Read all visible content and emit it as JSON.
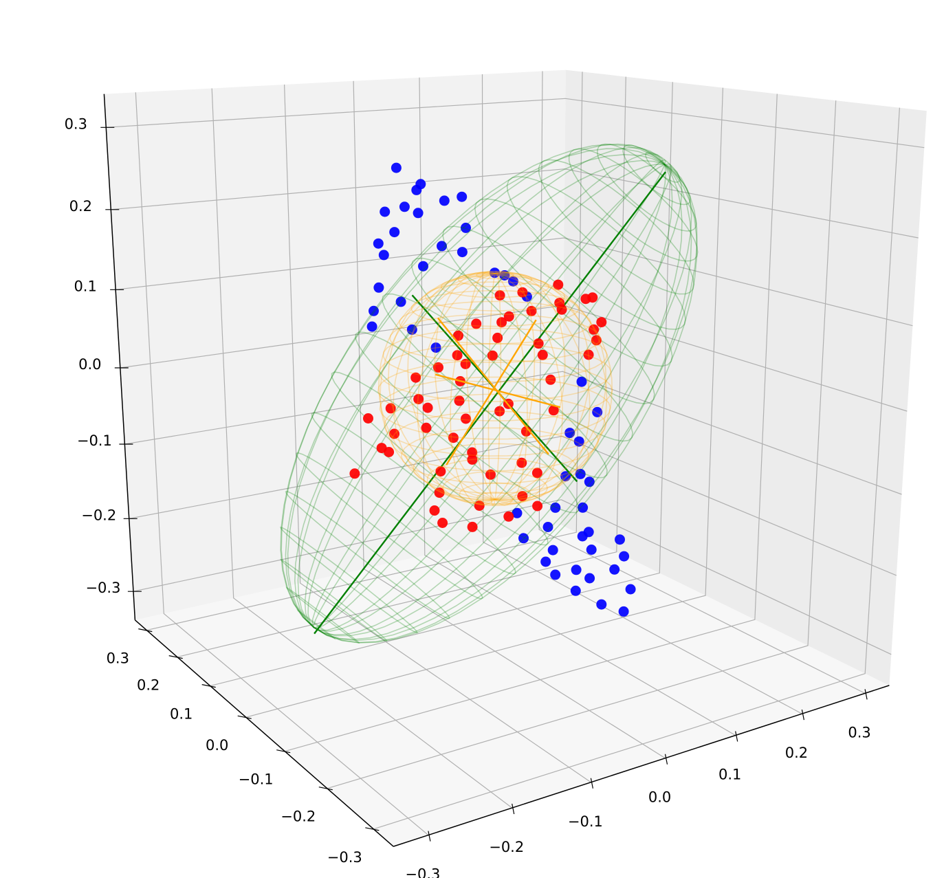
{
  "chart_data": {
    "type": "scatter3d",
    "xlim": [
      -0.34,
      0.34
    ],
    "ylim": [
      -0.34,
      0.34
    ],
    "zlim": [
      -0.34,
      0.34
    ],
    "xticks": [
      {
        "value": -0.3,
        "label": "−0.3"
      },
      {
        "value": -0.2,
        "label": "−0.2"
      },
      {
        "value": -0.1,
        "label": "−0.1"
      },
      {
        "value": 0,
        "label": "0.0"
      },
      0.1,
      0.2,
      0.3
    ],
    "yticks": [
      {
        "value": -0.3,
        "label": "−0.3"
      },
      {
        "value": -0.2,
        "label": "−0.2"
      },
      {
        "value": -0.1,
        "label": "−0.1"
      },
      {
        "value": 0,
        "label": "0.0"
      },
      0.1,
      0.2,
      0.3
    ],
    "zticks": [
      {
        "value": -0.3,
        "label": "−0.3"
      },
      {
        "value": -0.2,
        "label": "−0.2"
      },
      {
        "value": -0.1,
        "label": "−0.1"
      },
      {
        "value": 0,
        "label": "0.0"
      },
      0.1,
      0.2,
      0.3
    ],
    "grid": true,
    "series": [
      {
        "color": "#0000ff",
        "x": [
          -0.12,
          -0.106,
          -0.088,
          -0.069,
          -0.133,
          -0.098,
          -0.059,
          -0.033,
          -0.147,
          -0.118,
          -0.079,
          -0.039,
          -0.167,
          -0.138,
          -0.098,
          -0.02,
          0.02,
          0.039,
          -0.162,
          -0.128,
          -0.147,
          -0.177,
          -0.108,
          -0.088,
          0.059,
          0.128,
          0.138,
          0.118,
          0.147,
          0.098,
          0.128,
          0.157,
          0.069,
          0.039,
          0.079,
          0.118,
          0.157,
          0.049,
          0.069,
          0.108,
          0.147,
          0.177,
          0.098,
          0.138,
          0.177,
          0.123,
          0.167,
          0.196,
          0.172,
          0.201,
          0.192,
          0.147
        ],
        "y": [
          0.02,
          -0.01,
          0.03,
          0,
          -0.02,
          0.01,
          -0.03,
          0.02,
          0,
          0.03,
          -0.01,
          0.01,
          -0.02,
          0.02,
          0,
          -0.03,
          0.01,
          0.02,
          -0.01,
          0,
          0.03,
          -0.02,
          0.01,
          -0.01,
          0.02,
          0,
          -0.02,
          0.01,
          0.03,
          -0.01,
          0,
          0.02,
          -0.03,
          0.01,
          0,
          -0.02,
          0.02,
          0.01,
          -0.01,
          0.03,
          0,
          -0.02,
          0.01,
          0.02,
          -0.01,
          0,
          0.03,
          -0.02,
          0.01,
          0,
          -0.01,
          0.02
        ],
        "z": [
          0.271,
          0.255,
          0.242,
          0.232,
          0.233,
          0.219,
          0.204,
          0.231,
          0.226,
          0.196,
          0.182,
          0.168,
          0.195,
          0.173,
          0.159,
          0.148,
          0.134,
          0.123,
          0.143,
          0.121,
          0.107,
          0.102,
          0.084,
          0.064,
          0.102,
          -0.01,
          -0.046,
          -0.077,
          -0.098,
          -0.125,
          -0.13,
          -0.151,
          -0.155,
          -0.168,
          -0.191,
          -0.205,
          -0.219,
          -0.203,
          -0.232,
          -0.237,
          -0.235,
          -0.221,
          -0.262,
          -0.267,
          -0.265,
          -0.286,
          -0.288,
          -0.293,
          -0.319,
          -0.332,
          -0.25,
          -0.184
        ]
      },
      {
        "color": "#ff0000",
        "x": [
          0.098,
          0.128,
          0.147,
          0.157,
          0.138,
          0.118,
          0.079,
          0.059,
          0.039,
          0.02,
          0,
          -0.02,
          -0.039,
          -0.059,
          -0.079,
          -0.098,
          -0.118,
          -0.138,
          -0.157,
          -0.162,
          -0.147,
          -0.128,
          -0.108,
          -0.088,
          -0.069,
          -0.049,
          -0.029,
          -0.01,
          0.01,
          0.029,
          0.049,
          0.069,
          0.088,
          0.079,
          0.059,
          0.039,
          0.02,
          0,
          -0.02,
          -0.039,
          -0.059,
          -0.079,
          -0.098,
          -0.069,
          -0.039,
          -0.01,
          0.02,
          0.049,
          0.069,
          0.039,
          0,
          -0.029,
          -0.059,
          -0.203,
          0.157,
          0.138
        ],
        "y": [
          0.01,
          -0.02,
          0.02,
          0,
          -0.01,
          0.03,
          -0.02,
          0.01,
          0,
          0.02,
          -0.03,
          0.01,
          0.02,
          -0.01,
          0,
          0.02,
          -0.02,
          0.01,
          0.03,
          -0.01,
          0,
          0.02,
          -0.02,
          0.01,
          -0.03,
          0,
          0.02,
          -0.01,
          0.01,
          0.03,
          -0.02,
          0,
          0.01,
          -0.01,
          0.02,
          0,
          -0.03,
          0.01,
          0.02,
          -0.01,
          0.03,
          0,
          -0.02,
          0.01,
          -0.01,
          0.02,
          0,
          -0.02,
          0.01,
          0.03,
          -0.01,
          0.02,
          0,
          -0.02,
          0.01,
          0
        ],
        "z": [
          0.114,
          0.1,
          0.089,
          0.062,
          0.057,
          0.077,
          0.099,
          0.086,
          0.113,
          0.108,
          0.094,
          0.08,
          0.066,
          0.051,
          0.037,
          0.023,
          0.009,
          -0.006,
          -0.02,
          -0.045,
          -0.055,
          -0.041,
          -0.027,
          -0.013,
          0.002,
          0.016,
          0.03,
          0.044,
          0.059,
          0.072,
          0.053,
          0.032,
          -0.004,
          -0.037,
          -0.068,
          -0.1,
          -0.131,
          -0.111,
          -0.091,
          -0.071,
          -0.102,
          -0.117,
          -0.13,
          -0.16,
          -0.165,
          -0.152,
          -0.166,
          -0.152,
          -0.121,
          -0.032,
          -0.026,
          -0.038,
          -0.052,
          -0.066,
          0.037,
          0.023
        ]
      }
    ],
    "surfaces": [
      {
        "color": "#008000",
        "center": [
          0,
          0,
          0
        ],
        "radii": [
          0.354,
          0.18,
          0.15
        ],
        "axes": [
          [
            0.707,
            0,
            0.707
          ],
          [
            0.707,
            0,
            -0.707
          ],
          [
            0,
            1,
            0
          ]
        ]
      },
      {
        "color": "#ffa500",
        "center": [
          0,
          0,
          0
        ],
        "radii": [
          0.14,
          0.14,
          0.14
        ],
        "axes": [
          [
            0,
            0,
            1
          ],
          [
            1,
            0,
            0
          ],
          [
            0,
            1,
            0
          ]
        ]
      }
    ],
    "lines": [
      {
        "color": "#008000",
        "from": [
          -0.25,
          0,
          -0.258
        ],
        "to": [
          0.252,
          0,
          0.241
        ]
      },
      {
        "color": "#008000",
        "from": [
          -0.113,
          0,
          0.127
        ],
        "to": [
          0.123,
          0,
          -0.139
        ]
      },
      {
        "color": "#ffa500",
        "from": [
          -0.083,
          0,
          0.029
        ],
        "to": [
          0.096,
          0,
          -0.038
        ]
      },
      {
        "color": "#ffa500",
        "from": [
          -0.079,
          0,
          0.096
        ],
        "to": [
          0.079,
          0,
          -0.096
        ]
      },
      {
        "color": "#ffa500",
        "from": [
          -0.069,
          0,
          -0.084
        ],
        "to": [
          0.059,
          0,
          0.077
        ]
      }
    ]
  }
}
